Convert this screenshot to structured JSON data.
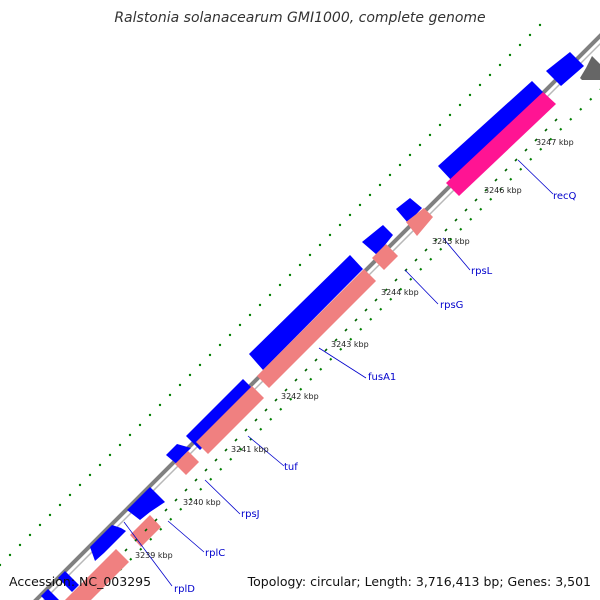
{
  "title": "Ralstonia solanacearum GMI1000, complete genome",
  "footer": {
    "accession": "Accession: NC_003295",
    "summary": "Topology: circular; Length: 3,716,413 bp; Genes: 3,501"
  },
  "colors": {
    "backbone": "#888888",
    "forward_cds": "#0000ff",
    "reverse_gene": "#f08080",
    "reverse_highlight": "#ff1493",
    "gc_dots": "#008000",
    "gene_labels": "#0000cc"
  },
  "kbp_labels": [
    "3239 kbp",
    "3240 kbp",
    "3241 kbp",
    "3242 kbp",
    "3243 kbp",
    "3244 kbp",
    "3245 kbp",
    "3246 kbp",
    "3247 kbp"
  ],
  "genes": [
    "rplD",
    "rplC",
    "rpsJ",
    "tuf",
    "fusA1",
    "rpsG",
    "rpsL",
    "recQ"
  ]
}
